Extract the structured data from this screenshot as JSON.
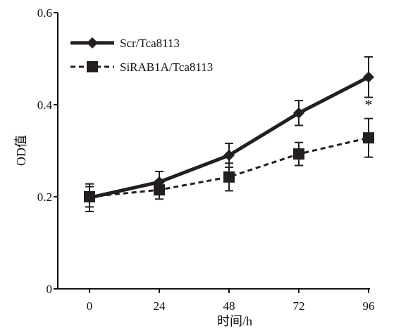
{
  "chart_data": {
    "type": "line",
    "title": "",
    "xlabel": "时间/h",
    "ylabel": "OD值",
    "x": [
      0,
      24,
      48,
      72,
      96
    ],
    "xlim": [
      0,
      96
    ],
    "ylim": [
      0,
      0.6
    ],
    "yticks": [
      "0",
      "0.2",
      "0.4",
      "0.6"
    ],
    "xticks": [
      "0",
      "24",
      "48",
      "72",
      "96"
    ],
    "grid": false,
    "legend_position": "top-left",
    "series": [
      {
        "name": "Scr/Tca8113",
        "values": [
          0.198,
          0.232,
          0.29,
          0.382,
          0.46
        ],
        "errors": [
          0.03,
          0.023,
          0.026,
          0.027,
          0.044
        ],
        "marker": "diamond",
        "line_style": "solid",
        "color": "#231f20"
      },
      {
        "name": "SiRAB1A/Tca8113",
        "values": [
          0.2,
          0.215,
          0.243,
          0.293,
          0.328
        ],
        "errors": [
          0.022,
          0.02,
          0.03,
          0.025,
          0.042
        ],
        "marker": "square",
        "line_style": "dashed",
        "color": "#231f20"
      }
    ],
    "annotations": [
      {
        "text": "*",
        "x": 96,
        "series": 1
      }
    ]
  }
}
